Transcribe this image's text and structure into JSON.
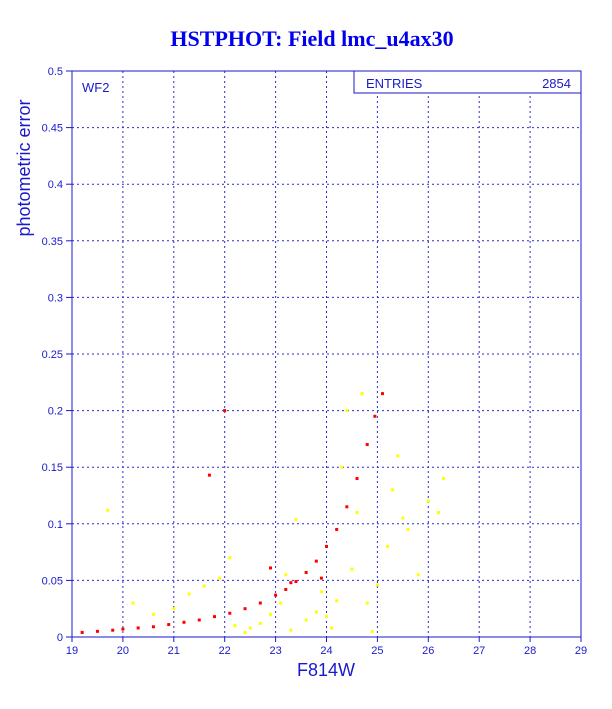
{
  "chart_data": {
    "type": "scatter",
    "title": "HSTPHOT: Field lmc_u4ax30",
    "xlabel": "F814W",
    "ylabel": "photometric error",
    "xlim": [
      19,
      29
    ],
    "ylim": [
      0,
      0.5
    ],
    "x_ticks": [
      "19",
      "20",
      "21",
      "22",
      "23",
      "24",
      "25",
      "26",
      "27",
      "28",
      "29"
    ],
    "y_ticks": [
      "0",
      "0.05",
      "0.1",
      "0.15",
      "0.2",
      "0.25",
      "0.3",
      "0.35",
      "0.4",
      "0.45",
      "0.5"
    ],
    "grid": true,
    "annotation": "WF2",
    "stats_box": {
      "label": "ENTRIES",
      "value": "2854"
    },
    "series": [
      {
        "color": "#ff0000",
        "points": [
          [
            19.2,
            0.004
          ],
          [
            19.5,
            0.005
          ],
          [
            19.8,
            0.006
          ],
          [
            20.0,
            0.007
          ],
          [
            20.3,
            0.008
          ],
          [
            20.6,
            0.009
          ],
          [
            20.9,
            0.011
          ],
          [
            21.2,
            0.013
          ],
          [
            21.5,
            0.015
          ],
          [
            21.8,
            0.018
          ],
          [
            22.1,
            0.021
          ],
          [
            22.4,
            0.025
          ],
          [
            22.7,
            0.03
          ],
          [
            23.0,
            0.037
          ],
          [
            23.2,
            0.042
          ],
          [
            23.4,
            0.049
          ],
          [
            23.6,
            0.057
          ],
          [
            23.8,
            0.067
          ],
          [
            24.0,
            0.08
          ],
          [
            24.2,
            0.095
          ],
          [
            24.4,
            0.115
          ],
          [
            24.6,
            0.14
          ],
          [
            24.8,
            0.17
          ],
          [
            24.95,
            0.195
          ],
          [
            25.1,
            0.215
          ],
          [
            21.7,
            0.143
          ],
          [
            22.0,
            0.2
          ],
          [
            23.3,
            0.048
          ],
          [
            23.9,
            0.052
          ],
          [
            22.9,
            0.061
          ]
        ]
      },
      {
        "color": "#ffff00",
        "points": [
          [
            19.7,
            0.112
          ],
          [
            20.2,
            0.03
          ],
          [
            20.6,
            0.02
          ],
          [
            21.0,
            0.025
          ],
          [
            21.3,
            0.038
          ],
          [
            21.6,
            0.045
          ],
          [
            21.9,
            0.052
          ],
          [
            22.1,
            0.07
          ],
          [
            22.2,
            0.01
          ],
          [
            22.5,
            0.008
          ],
          [
            22.7,
            0.012
          ],
          [
            22.9,
            0.02
          ],
          [
            23.1,
            0.03
          ],
          [
            23.2,
            0.055
          ],
          [
            23.4,
            0.104
          ],
          [
            23.6,
            0.015
          ],
          [
            23.8,
            0.022
          ],
          [
            23.9,
            0.04
          ],
          [
            24.0,
            0.018
          ],
          [
            24.2,
            0.032
          ],
          [
            24.3,
            0.15
          ],
          [
            24.4,
            0.2
          ],
          [
            24.5,
            0.06
          ],
          [
            24.6,
            0.11
          ],
          [
            24.7,
            0.215
          ],
          [
            24.8,
            0.03
          ],
          [
            25.0,
            0.046
          ],
          [
            25.2,
            0.08
          ],
          [
            25.3,
            0.13
          ],
          [
            25.5,
            0.105
          ],
          [
            25.6,
            0.095
          ],
          [
            25.8,
            0.055
          ],
          [
            26.0,
            0.12
          ],
          [
            26.2,
            0.11
          ],
          [
            26.3,
            0.14
          ],
          [
            24.1,
            0.008
          ],
          [
            23.3,
            0.006
          ],
          [
            22.4,
            0.004
          ],
          [
            25.4,
            0.16
          ],
          [
            24.9,
            0.005
          ]
        ]
      }
    ]
  }
}
